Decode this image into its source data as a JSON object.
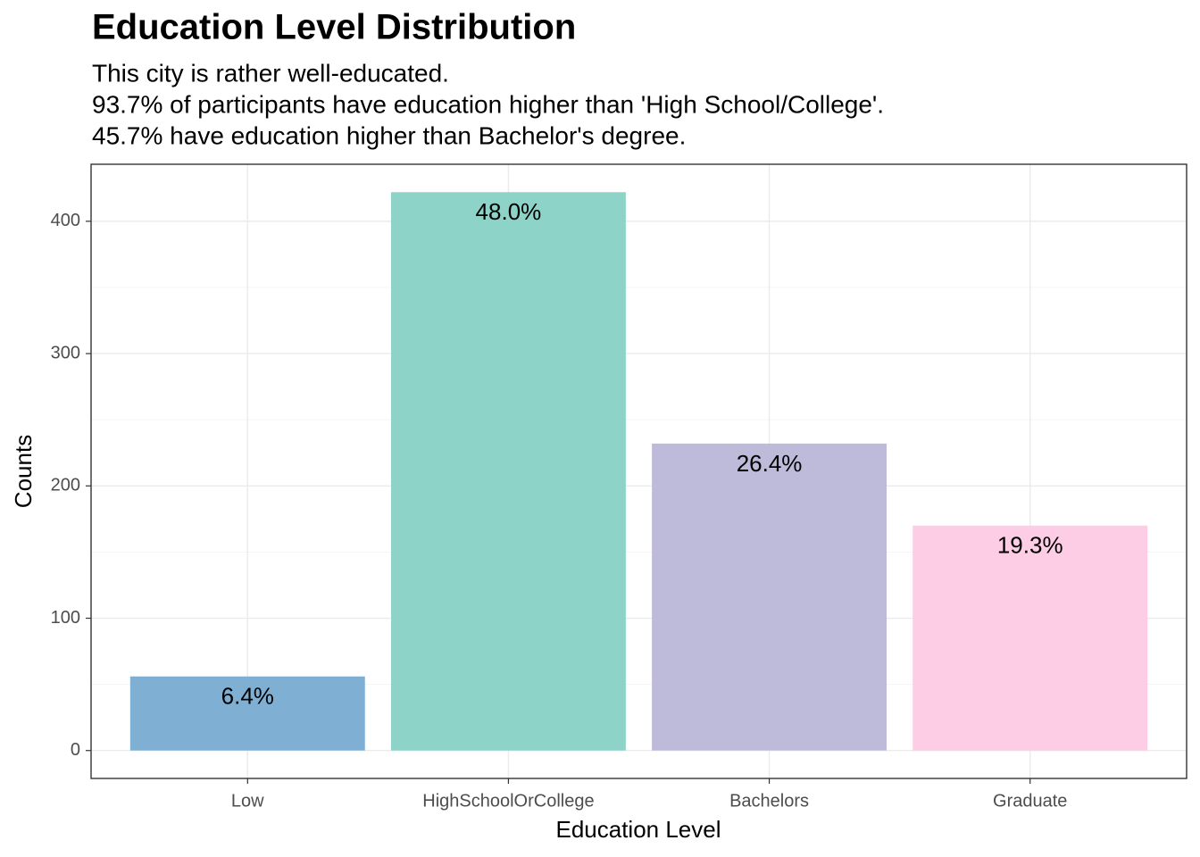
{
  "chart_data": {
    "type": "bar",
    "title": "Education Level Distribution",
    "subtitle": [
      "This city is rather well-educated.",
      "93.7% of participants have education higher than 'High School/College'.",
      "45.7% have education higher than Bachelor's degree."
    ],
    "x_label": "Education Level",
    "y_label": "Counts",
    "categories": [
      "Low",
      "HighSchoolOrCollege",
      "Bachelors",
      "Graduate"
    ],
    "values": [
      56,
      422,
      232,
      170
    ],
    "bar_labels": [
      "6.4%",
      "48.0%",
      "26.4%",
      "19.3%"
    ],
    "colors": [
      "#7fb0d3",
      "#8dd3c7",
      "#bebada",
      "#fccde5"
    ],
    "ylim": [
      -21.1,
      443.1
    ],
    "yticks": [
      0,
      100,
      200,
      300,
      400
    ],
    "minor_yticks": [
      50,
      150,
      250,
      350
    ],
    "grid": true
  }
}
